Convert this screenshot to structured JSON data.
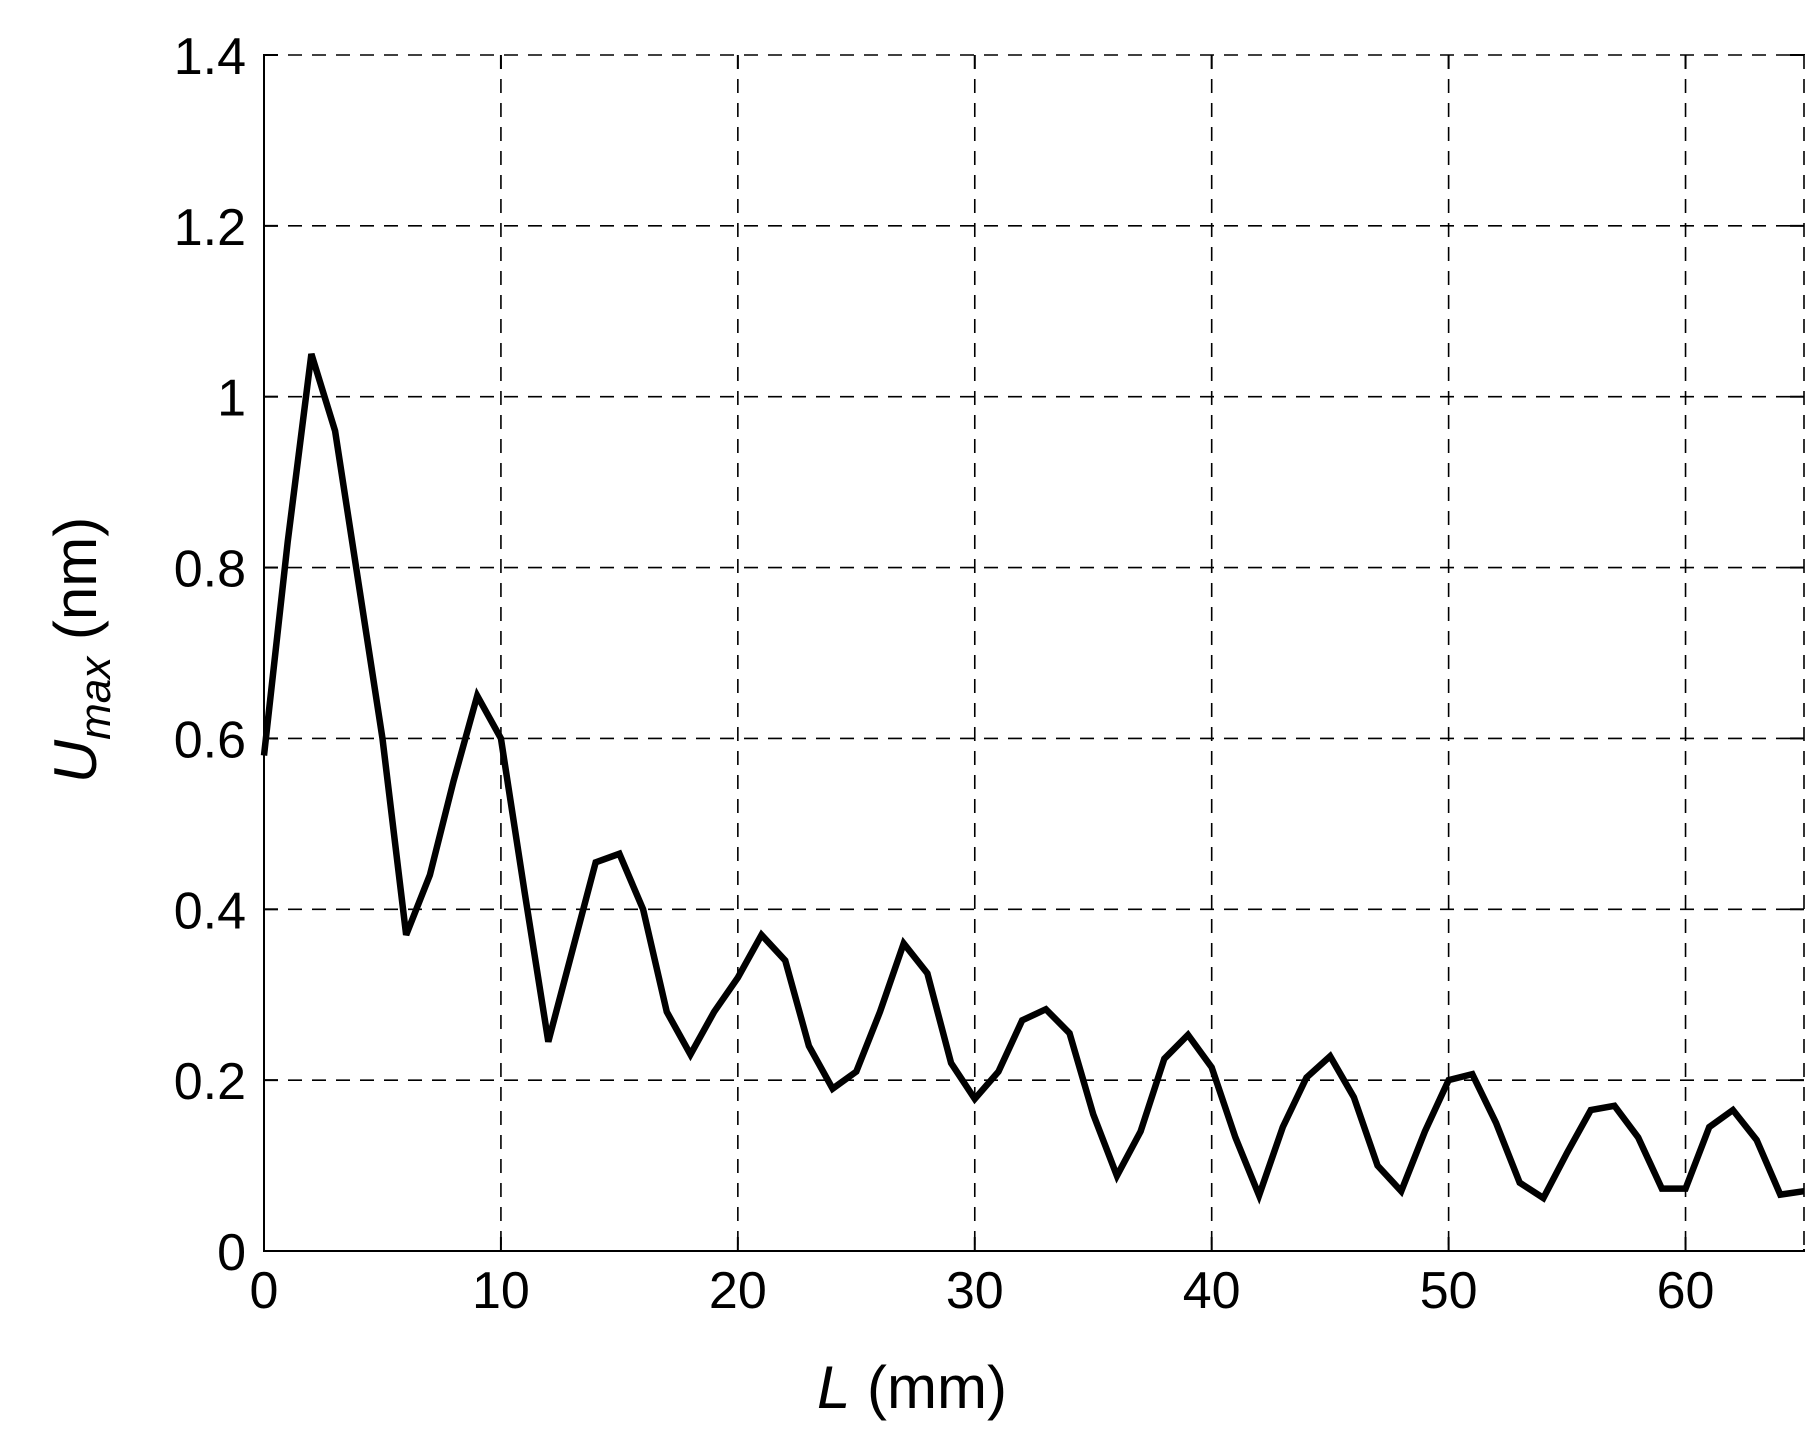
{
  "chart_data": {
    "type": "line",
    "xlabel": {
      "italic": "L",
      "rest": " (mm)"
    },
    "ylabel": {
      "italic": "U",
      "subscript": "max",
      "rest": " (nm)"
    },
    "xlim": [
      0,
      65
    ],
    "ylim": [
      0,
      1.4
    ],
    "xticks": [
      0,
      10,
      20,
      30,
      40,
      50,
      60
    ],
    "xtick_labels": [
      "0",
      "10",
      "20",
      "30",
      "40",
      "50",
      "60"
    ],
    "yticks": [
      0,
      0.2,
      0.4,
      0.6,
      0.8,
      1.0,
      1.2,
      1.4
    ],
    "ytick_labels": [
      "0",
      "0.2",
      "0.4",
      "0.6",
      "0.8",
      "1",
      "1.2",
      "1.4"
    ],
    "grid": true,
    "grid_style": "dashed",
    "line_color": "#000000",
    "series": [
      {
        "x": [
          0,
          1,
          2,
          3,
          4,
          5,
          6,
          7,
          8,
          9,
          10,
          11,
          12,
          13,
          14,
          15,
          16,
          17,
          18,
          19,
          20,
          21,
          22,
          23,
          24,
          25,
          26,
          27,
          28,
          29,
          30,
          31,
          32,
          33,
          34,
          35,
          36,
          37,
          38,
          39,
          40,
          41,
          42,
          43,
          44,
          45,
          46,
          47,
          48,
          49,
          50,
          51,
          52,
          53,
          54,
          55,
          56,
          57,
          58,
          59,
          60,
          61,
          62,
          63,
          64,
          65
        ],
        "y": [
          0.58,
          0.83,
          1.05,
          0.96,
          0.78,
          0.6,
          0.37,
          0.44,
          0.55,
          0.65,
          0.6,
          0.42,
          0.245,
          0.35,
          0.455,
          0.465,
          0.4,
          0.28,
          0.23,
          0.28,
          0.32,
          0.37,
          0.34,
          0.24,
          0.19,
          0.21,
          0.28,
          0.36,
          0.325,
          0.22,
          0.178,
          0.21,
          0.27,
          0.283,
          0.255,
          0.16,
          0.088,
          0.14,
          0.225,
          0.253,
          0.215,
          0.133,
          0.065,
          0.145,
          0.203,
          0.228,
          0.18,
          0.1,
          0.07,
          0.14,
          0.2,
          0.207,
          0.15,
          0.08,
          0.062,
          0.115,
          0.165,
          0.17,
          0.133,
          0.073,
          0.073,
          0.145,
          0.165,
          0.13,
          0.066,
          0.07
        ]
      }
    ]
  }
}
